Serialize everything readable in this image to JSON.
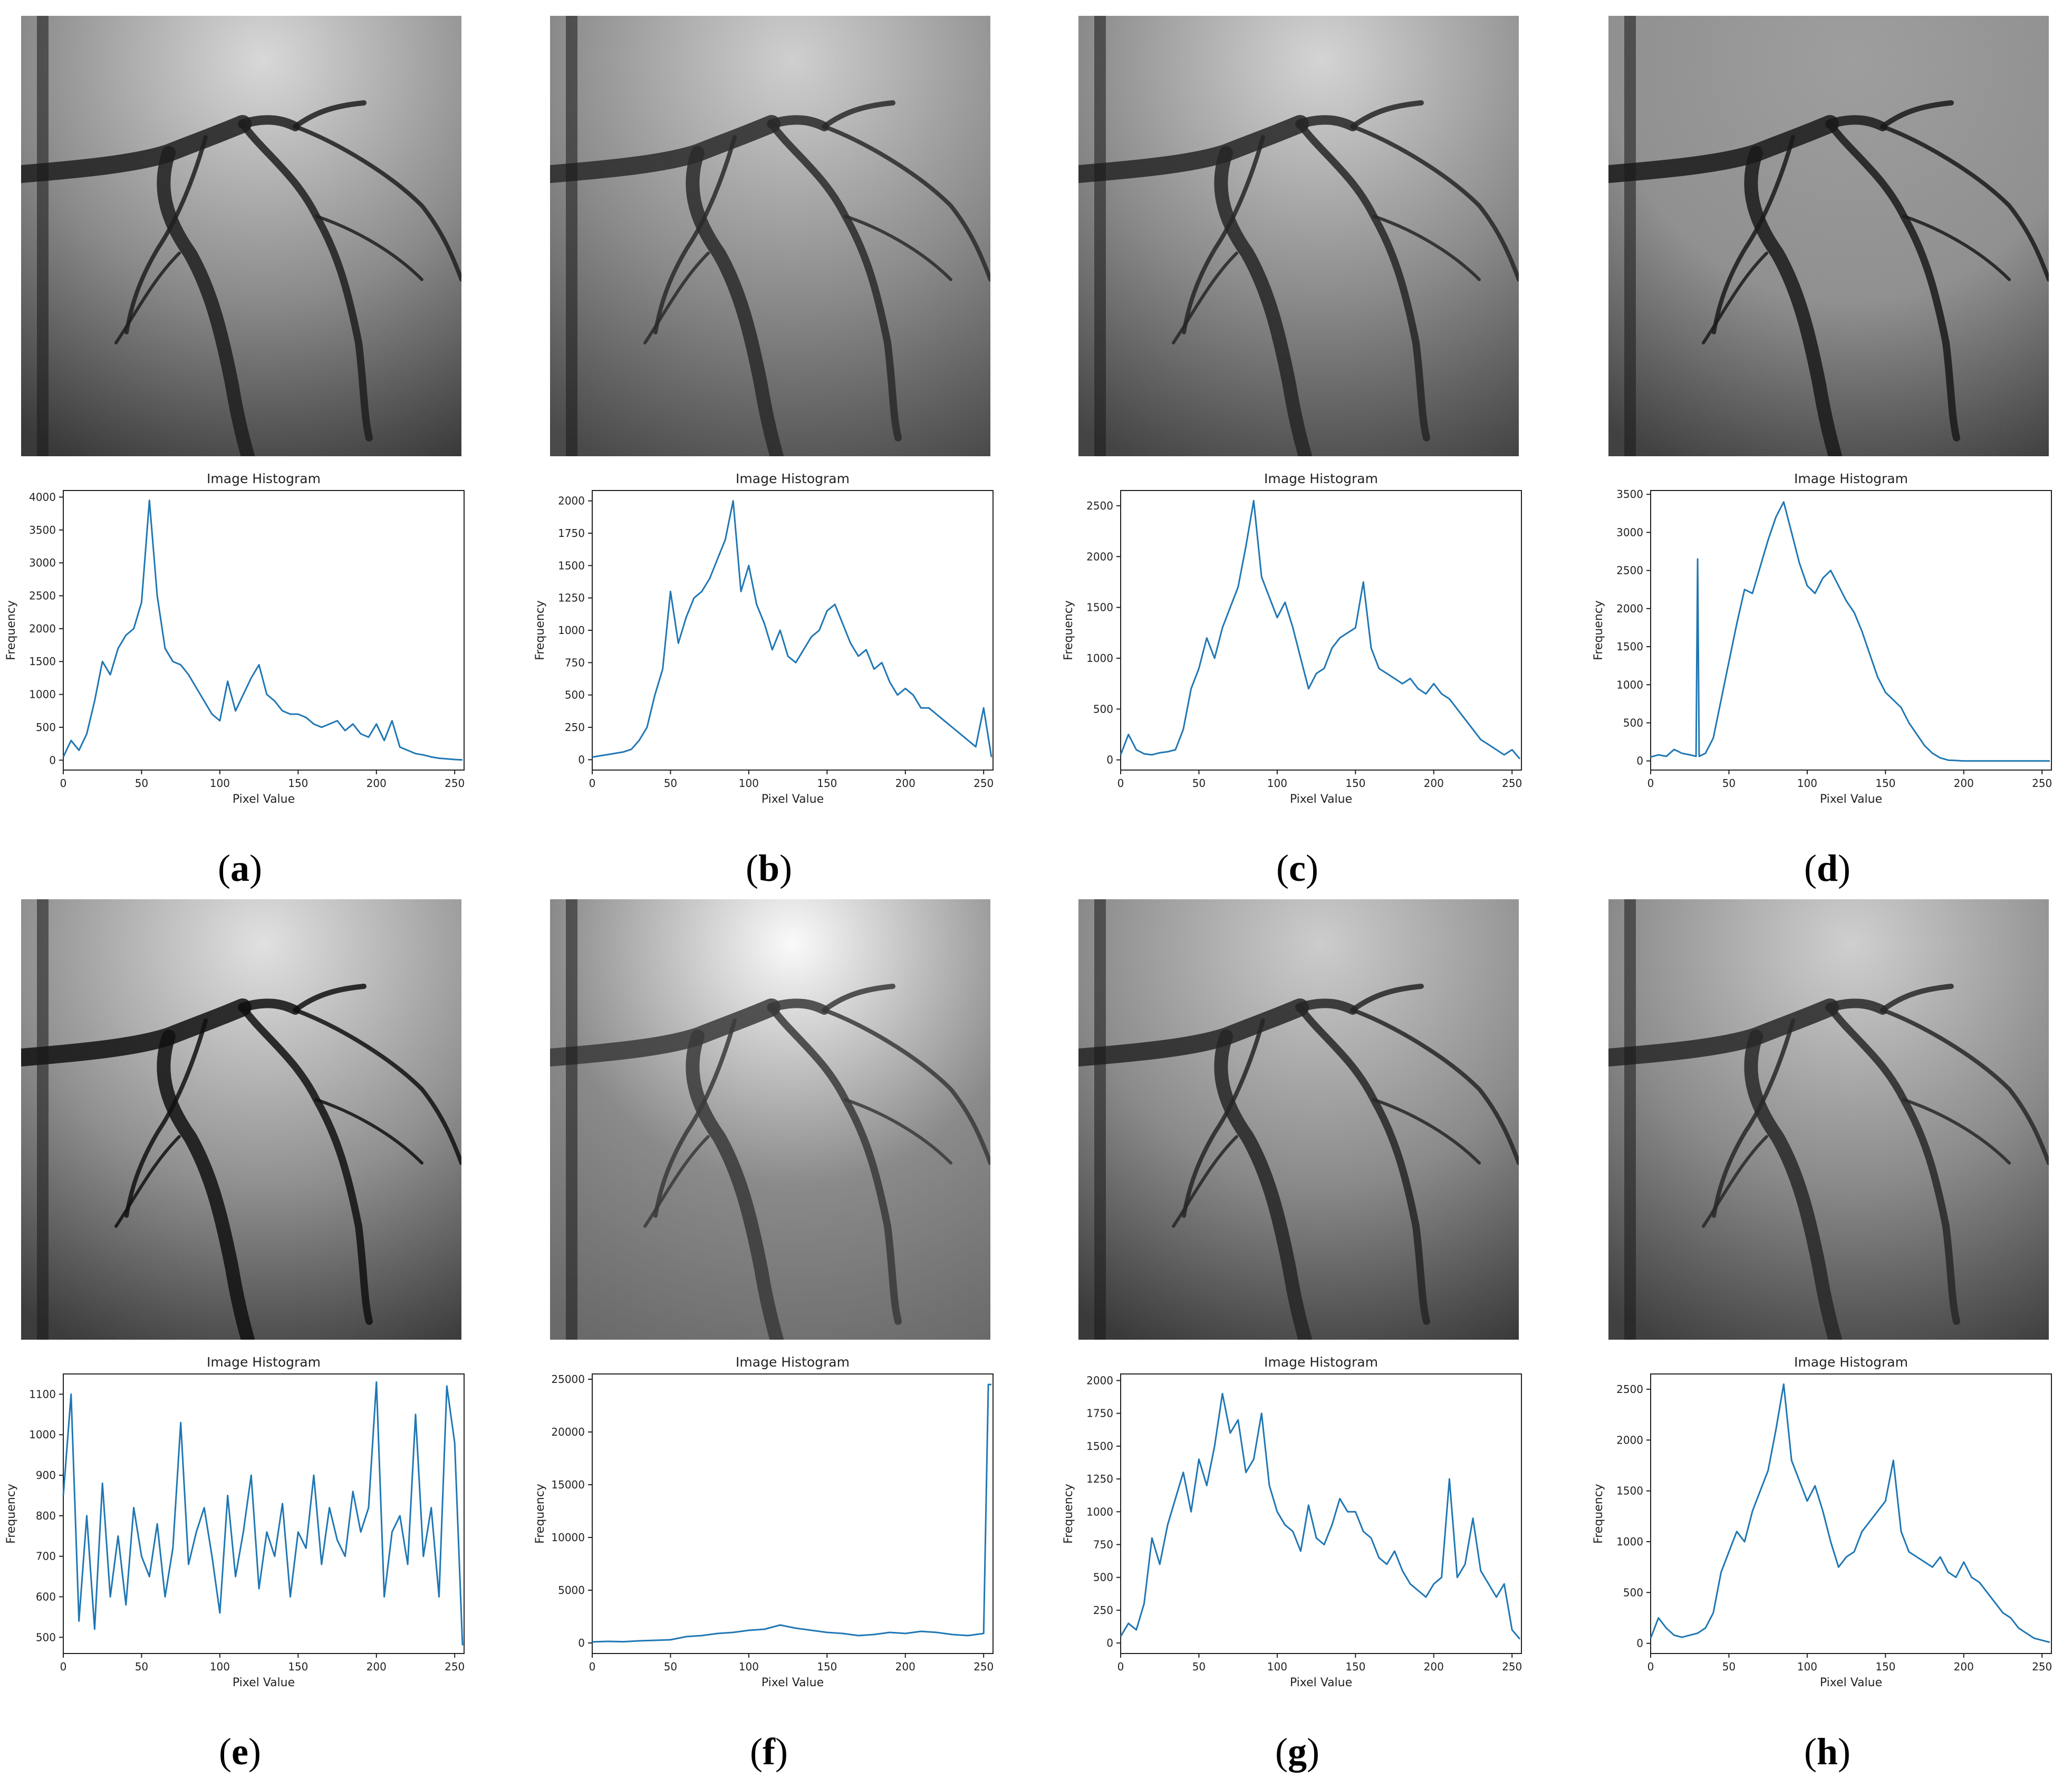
{
  "figure": {
    "panels": [
      "a",
      "b",
      "c",
      "d",
      "e",
      "f",
      "g",
      "h"
    ]
  },
  "colors": {
    "line": "#1f77b4",
    "vessel": "#2b2b2b",
    "background_bright": "#d9d9d9"
  },
  "chart_data": [
    {
      "id": "a",
      "caption": "a",
      "type": "line",
      "title": "Image Histogram",
      "xlabel": "Pixel Value",
      "ylabel": "Frequency",
      "xlim": [
        0,
        256
      ],
      "ylim": [
        -150,
        4100
      ],
      "xticks": [
        0,
        50,
        100,
        150,
        200,
        250
      ],
      "yticks": [
        0,
        500,
        1000,
        1500,
        2000,
        2500,
        3000,
        3500,
        4000
      ],
      "x": [
        0,
        5,
        10,
        15,
        20,
        25,
        30,
        35,
        40,
        45,
        50,
        55,
        60,
        65,
        70,
        75,
        80,
        85,
        90,
        95,
        100,
        105,
        110,
        115,
        120,
        125,
        130,
        135,
        140,
        145,
        150,
        155,
        160,
        165,
        170,
        175,
        180,
        185,
        190,
        195,
        200,
        205,
        210,
        215,
        220,
        225,
        230,
        235,
        240,
        245,
        250,
        255
      ],
      "y": [
        50,
        300,
        150,
        400,
        900,
        1500,
        1300,
        1700,
        1900,
        2000,
        2400,
        3950,
        2500,
        1700,
        1500,
        1450,
        1300,
        1100,
        900,
        700,
        600,
        1200,
        750,
        1000,
        1250,
        1450,
        1000,
        900,
        750,
        700,
        700,
        650,
        550,
        500,
        550,
        600,
        450,
        550,
        400,
        350,
        550,
        300,
        600,
        200,
        150,
        100,
        80,
        50,
        30,
        20,
        10,
        5
      ]
    },
    {
      "id": "b",
      "caption": "b",
      "type": "line",
      "title": "Image Histogram",
      "xlabel": "Pixel Value",
      "ylabel": "Frequency",
      "xlim": [
        0,
        256
      ],
      "ylim": [
        -80,
        2080
      ],
      "xticks": [
        0,
        50,
        100,
        150,
        200,
        250
      ],
      "yticks": [
        0,
        250,
        500,
        750,
        1000,
        1250,
        1500,
        1750,
        2000
      ],
      "x": [
        0,
        5,
        10,
        15,
        20,
        25,
        30,
        35,
        40,
        45,
        50,
        55,
        60,
        65,
        70,
        75,
        80,
        85,
        90,
        95,
        100,
        105,
        110,
        115,
        120,
        125,
        130,
        135,
        140,
        145,
        150,
        155,
        160,
        165,
        170,
        175,
        180,
        185,
        190,
        195,
        200,
        205,
        210,
        215,
        220,
        225,
        230,
        235,
        240,
        245,
        250,
        255
      ],
      "y": [
        20,
        30,
        40,
        50,
        60,
        80,
        150,
        250,
        500,
        700,
        1300,
        900,
        1100,
        1250,
        1300,
        1400,
        1550,
        1700,
        2000,
        1300,
        1500,
        1200,
        1050,
        850,
        1000,
        800,
        750,
        850,
        950,
        1000,
        1150,
        1200,
        1050,
        900,
        800,
        850,
        700,
        750,
        600,
        500,
        550,
        500,
        400,
        400,
        350,
        300,
        250,
        200,
        150,
        100,
        400,
        20
      ]
    },
    {
      "id": "c",
      "caption": "c",
      "type": "line",
      "title": "Image Histogram",
      "xlabel": "Pixel Value",
      "ylabel": "Frequency",
      "xlim": [
        0,
        256
      ],
      "ylim": [
        -100,
        2650
      ],
      "xticks": [
        0,
        50,
        100,
        150,
        200,
        250
      ],
      "yticks": [
        0,
        500,
        1000,
        1500,
        2000,
        2500
      ],
      "x": [
        0,
        5,
        10,
        15,
        20,
        25,
        30,
        35,
        40,
        45,
        50,
        55,
        60,
        65,
        70,
        75,
        80,
        85,
        90,
        95,
        100,
        105,
        110,
        115,
        120,
        125,
        130,
        135,
        140,
        145,
        150,
        155,
        160,
        165,
        170,
        175,
        180,
        185,
        190,
        195,
        200,
        205,
        210,
        215,
        220,
        225,
        230,
        235,
        240,
        245,
        250,
        255
      ],
      "y": [
        50,
        250,
        100,
        60,
        50,
        70,
        80,
        100,
        300,
        700,
        900,
        1200,
        1000,
        1300,
        1500,
        1700,
        2100,
        2550,
        1800,
        1600,
        1400,
        1550,
        1300,
        1000,
        700,
        850,
        900,
        1100,
        1200,
        1250,
        1300,
        1750,
        1100,
        900,
        850,
        800,
        750,
        800,
        700,
        650,
        750,
        650,
        600,
        500,
        400,
        300,
        200,
        150,
        100,
        50,
        100,
        10
      ]
    },
    {
      "id": "d",
      "caption": "d",
      "type": "line",
      "title": "Image Histogram",
      "xlabel": "Pixel Value",
      "ylabel": "Frequency",
      "xlim": [
        0,
        256
      ],
      "ylim": [
        -120,
        3550
      ],
      "xticks": [
        0,
        50,
        100,
        150,
        200,
        250
      ],
      "yticks": [
        0,
        500,
        1000,
        1500,
        2000,
        2500,
        3000,
        3500
      ],
      "x": [
        0,
        5,
        10,
        15,
        20,
        25,
        29,
        30,
        31,
        35,
        40,
        45,
        50,
        55,
        60,
        65,
        70,
        75,
        80,
        85,
        90,
        95,
        100,
        105,
        110,
        115,
        120,
        125,
        130,
        135,
        140,
        145,
        150,
        155,
        160,
        165,
        170,
        175,
        180,
        185,
        190,
        195,
        200,
        205,
        210,
        220,
        230,
        240,
        250,
        255
      ],
      "y": [
        50,
        80,
        60,
        150,
        100,
        80,
        60,
        2650,
        60,
        100,
        300,
        800,
        1300,
        1800,
        2250,
        2200,
        2550,
        2900,
        3200,
        3400,
        3000,
        2600,
        2300,
        2200,
        2400,
        2500,
        2300,
        2100,
        1950,
        1700,
        1400,
        1100,
        900,
        800,
        700,
        500,
        350,
        200,
        100,
        40,
        10,
        5,
        0,
        0,
        0,
        0,
        0,
        0,
        0,
        0
      ]
    },
    {
      "id": "e",
      "caption": "e",
      "type": "line",
      "title": "Image Histogram",
      "xlabel": "Pixel Value",
      "ylabel": "Frequency",
      "xlim": [
        0,
        256
      ],
      "ylim": [
        460,
        1150
      ],
      "xticks": [
        0,
        50,
        100,
        150,
        200,
        250
      ],
      "yticks": [
        500,
        600,
        700,
        800,
        900,
        1000,
        1100
      ],
      "x": [
        0,
        5,
        10,
        15,
        20,
        25,
        30,
        35,
        40,
        45,
        50,
        55,
        60,
        65,
        70,
        75,
        80,
        85,
        90,
        95,
        100,
        105,
        110,
        115,
        120,
        125,
        130,
        135,
        140,
        145,
        150,
        155,
        160,
        165,
        170,
        175,
        180,
        185,
        190,
        195,
        200,
        205,
        210,
        215,
        220,
        225,
        230,
        235,
        240,
        245,
        250,
        255
      ],
      "y": [
        850,
        1100,
        540,
        800,
        520,
        880,
        600,
        750,
        580,
        820,
        700,
        650,
        780,
        600,
        720,
        1030,
        680,
        760,
        820,
        700,
        560,
        850,
        650,
        760,
        900,
        620,
        760,
        700,
        830,
        600,
        760,
        720,
        900,
        680,
        820,
        740,
        700,
        860,
        760,
        820,
        1130,
        600,
        760,
        800,
        680,
        1050,
        700,
        820,
        600,
        1120,
        980,
        480
      ]
    },
    {
      "id": "f",
      "caption": "f",
      "type": "line",
      "title": "Image Histogram",
      "xlabel": "Pixel Value",
      "ylabel": "Frequency",
      "xlim": [
        0,
        256
      ],
      "ylim": [
        -1000,
        25500
      ],
      "xticks": [
        0,
        50,
        100,
        150,
        200,
        250
      ],
      "yticks": [
        0,
        5000,
        10000,
        15000,
        20000,
        25000
      ],
      "x": [
        0,
        10,
        20,
        30,
        40,
        50,
        60,
        70,
        80,
        90,
        100,
        110,
        120,
        130,
        140,
        150,
        160,
        170,
        180,
        190,
        200,
        210,
        220,
        230,
        240,
        250,
        253,
        255
      ],
      "y": [
        100,
        150,
        120,
        200,
        250,
        300,
        600,
        700,
        900,
        1000,
        1200,
        1300,
        1700,
        1400,
        1200,
        1000,
        900,
        700,
        800,
        1000,
        900,
        1100,
        1000,
        800,
        700,
        900,
        24500,
        24500
      ]
    },
    {
      "id": "g",
      "caption": "g",
      "type": "line",
      "title": "Image Histogram",
      "xlabel": "Pixel Value",
      "ylabel": "Frequency",
      "xlim": [
        0,
        256
      ],
      "ylim": [
        -80,
        2050
      ],
      "xticks": [
        0,
        50,
        100,
        150,
        200,
        250
      ],
      "yticks": [
        0,
        250,
        500,
        750,
        1000,
        1250,
        1500,
        1750,
        2000
      ],
      "x": [
        0,
        5,
        10,
        15,
        20,
        25,
        30,
        35,
        40,
        45,
        50,
        55,
        60,
        65,
        70,
        75,
        80,
        85,
        90,
        95,
        100,
        105,
        110,
        115,
        120,
        125,
        130,
        135,
        140,
        145,
        150,
        155,
        160,
        165,
        170,
        175,
        180,
        185,
        190,
        195,
        200,
        205,
        210,
        215,
        220,
        225,
        230,
        235,
        240,
        245,
        250,
        255
      ],
      "y": [
        50,
        150,
        100,
        300,
        800,
        600,
        900,
        1100,
        1300,
        1000,
        1400,
        1200,
        1500,
        1900,
        1600,
        1700,
        1300,
        1400,
        1750,
        1200,
        1000,
        900,
        850,
        700,
        1050,
        800,
        750,
        900,
        1100,
        1000,
        1000,
        850,
        800,
        650,
        600,
        700,
        550,
        450,
        400,
        350,
        450,
        500,
        1250,
        500,
        600,
        950,
        550,
        450,
        350,
        450,
        100,
        30
      ]
    },
    {
      "id": "h",
      "caption": "h",
      "type": "line",
      "title": "Image Histogram",
      "xlabel": "Pixel Value",
      "ylabel": "Frequency",
      "xlim": [
        0,
        256
      ],
      "ylim": [
        -100,
        2650
      ],
      "xticks": [
        0,
        50,
        100,
        150,
        200,
        250
      ],
      "yticks": [
        0,
        500,
        1000,
        1500,
        2000,
        2500
      ],
      "x": [
        0,
        5,
        10,
        15,
        20,
        25,
        30,
        35,
        40,
        45,
        50,
        55,
        60,
        65,
        70,
        75,
        80,
        85,
        90,
        95,
        100,
        105,
        110,
        115,
        120,
        125,
        130,
        135,
        140,
        145,
        150,
        155,
        160,
        165,
        170,
        175,
        180,
        185,
        190,
        195,
        200,
        205,
        210,
        215,
        220,
        225,
        230,
        235,
        240,
        245,
        250,
        255
      ],
      "y": [
        50,
        250,
        150,
        80,
        60,
        80,
        100,
        150,
        300,
        700,
        900,
        1100,
        1000,
        1300,
        1500,
        1700,
        2100,
        2550,
        1800,
        1600,
        1400,
        1550,
        1300,
        1000,
        750,
        850,
        900,
        1100,
        1200,
        1300,
        1400,
        1800,
        1100,
        900,
        850,
        800,
        750,
        850,
        700,
        650,
        800,
        650,
        600,
        500,
        400,
        300,
        250,
        150,
        100,
        50,
        30,
        10
      ]
    }
  ]
}
